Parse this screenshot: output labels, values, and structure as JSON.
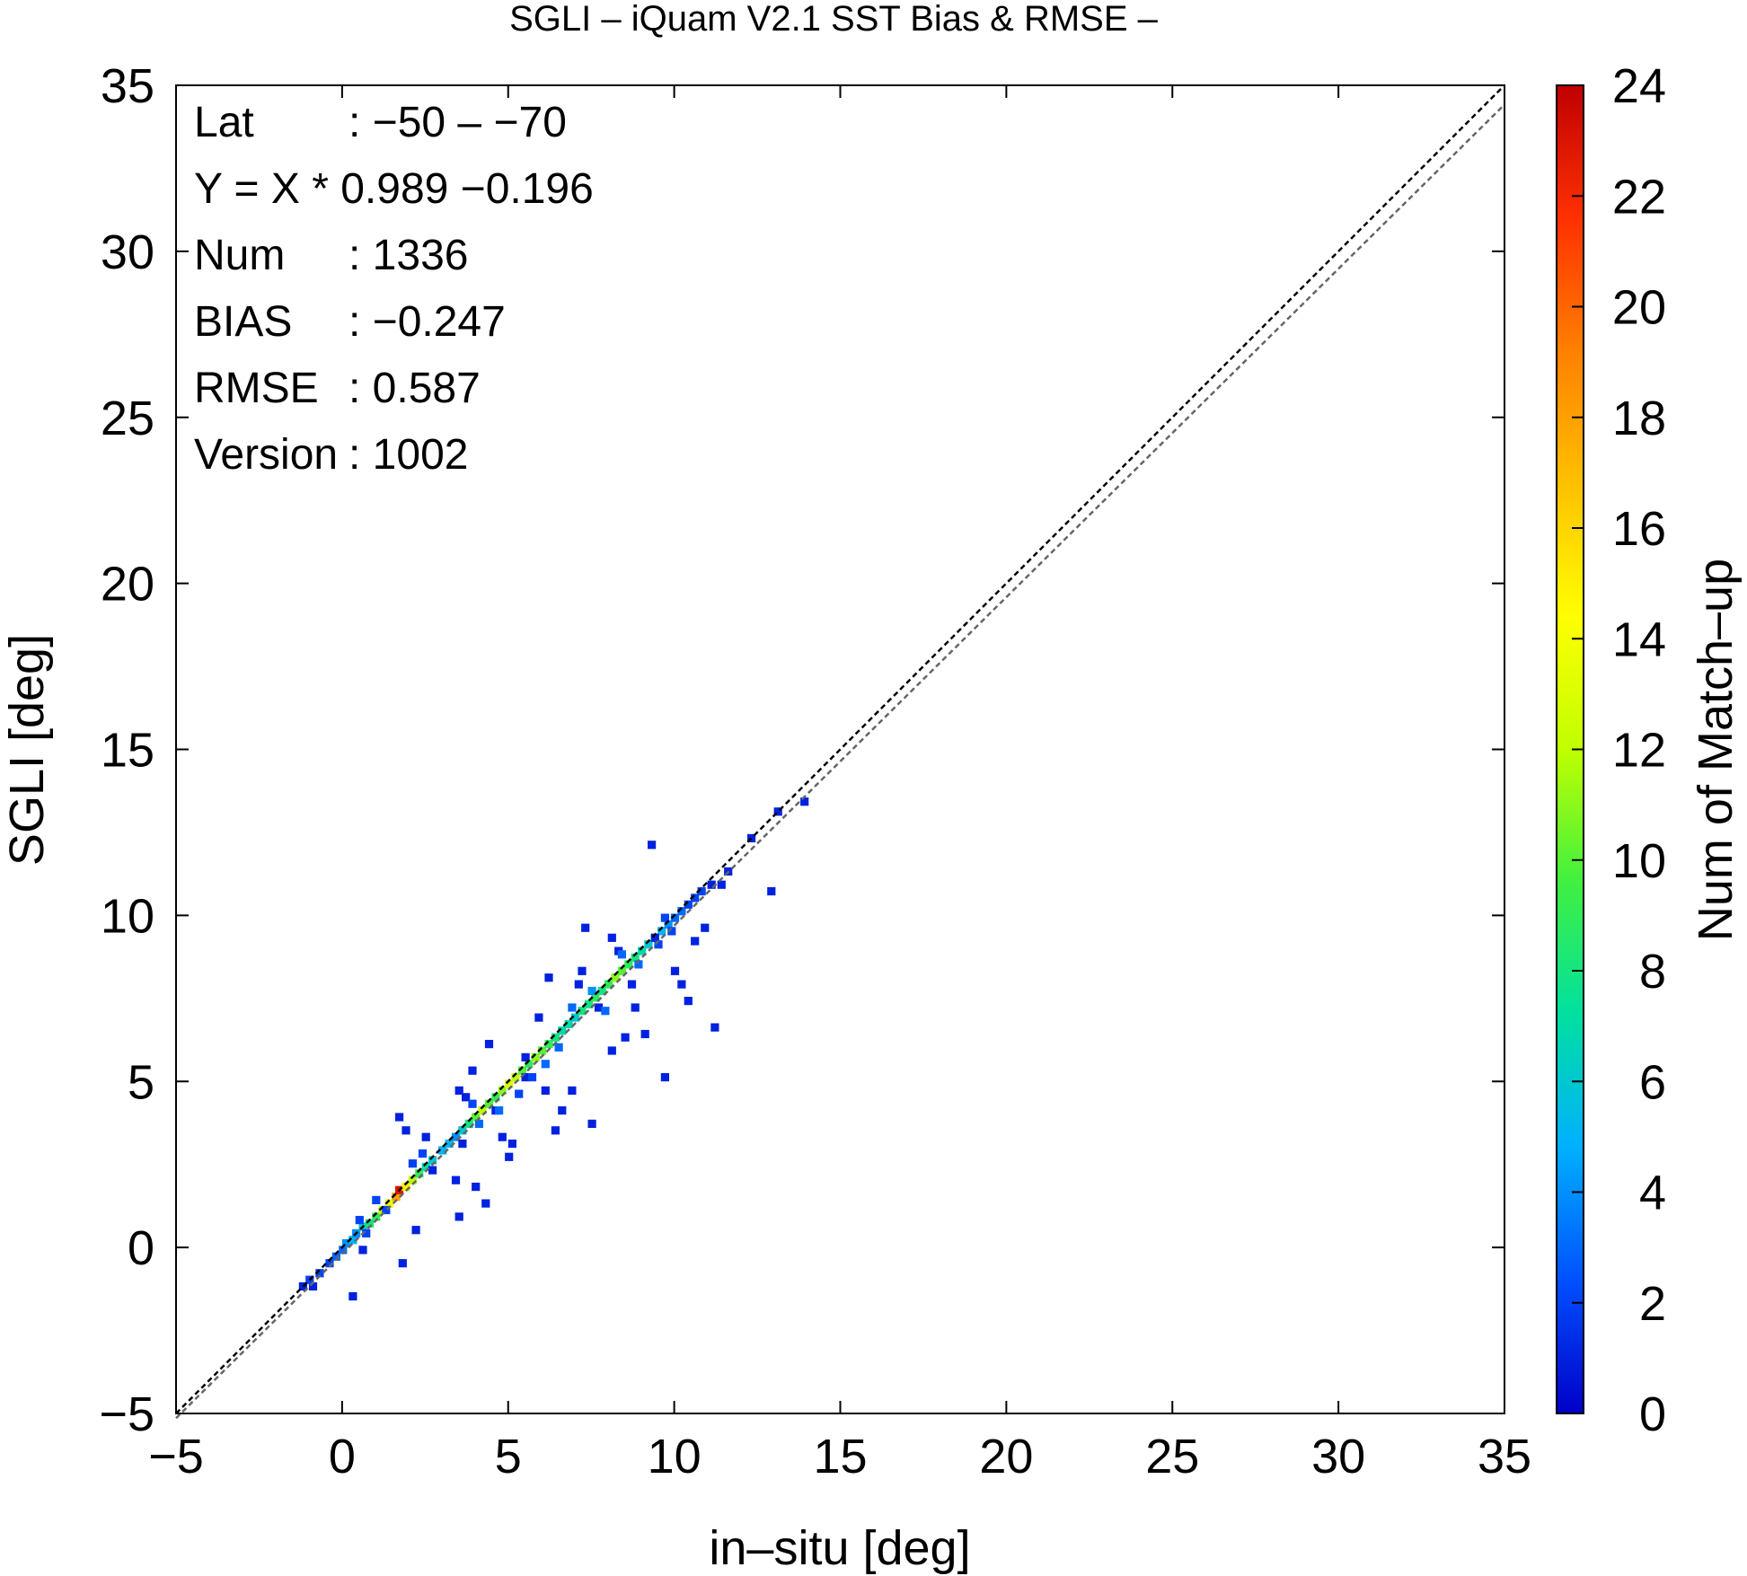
{
  "chart_data": {
    "type": "heatmap",
    "title": "SGLI – iQuam V2.1 SST Bias & RMSE  –",
    "xlabel": "in–situ [deg]",
    "ylabel": "SGLI [deg]",
    "xlim": [
      -5,
      35
    ],
    "ylim": [
      -5,
      35
    ],
    "x_ticks": [
      "−5",
      "0",
      "5",
      "10",
      "15",
      "20",
      "25",
      "30",
      "35"
    ],
    "y_ticks": [
      "−5",
      "0",
      "5",
      "10",
      "15",
      "20",
      "25",
      "30",
      "35"
    ],
    "colorbar": {
      "label": "Num of Match–up",
      "range": [
        0,
        24
      ],
      "ticks": [
        "0",
        "2",
        "4",
        "6",
        "8",
        "10",
        "12",
        "14",
        "16",
        "18",
        "20",
        "22",
        "24"
      ],
      "colormap": [
        "#0000c8",
        "#0050ff",
        "#00b0ff",
        "#00e0a0",
        "#40f040",
        "#c0ff00",
        "#ffff00",
        "#ffc000",
        "#ff8000",
        "#ff3000",
        "#c00000"
      ]
    },
    "reference_lines": [
      {
        "label": "1:1",
        "slope": 1,
        "intercept": 0,
        "color": "#000000",
        "style": "dashed"
      },
      {
        "label": "fit",
        "slope": 0.989,
        "intercept": -0.196,
        "color": "#666666",
        "style": "dashed"
      }
    ],
    "stats": [
      {
        "key": "Lat",
        "sep": ":",
        "value": "−50 – −70"
      },
      {
        "key": "Y = X * 0.989 −0.196",
        "sep": "",
        "value": ""
      },
      {
        "key": "Num",
        "sep": ":",
        "value": "1336"
      },
      {
        "key": "BIAS",
        "sep": ":",
        "value": "−0.247"
      },
      {
        "key": "RMSE",
        "sep": ":",
        "value": "0.587"
      },
      {
        "key": "Version",
        "sep": ":",
        "value": "1002"
      }
    ],
    "grid": false,
    "bin_size": 0.25,
    "bins": [
      [
        -1.3,
        -1.3,
        1
      ],
      [
        -1.0,
        -1.3,
        1
      ],
      [
        -1.1,
        -1.1,
        2
      ],
      [
        -0.8,
        -0.9,
        2
      ],
      [
        -0.5,
        -0.6,
        2
      ],
      [
        -0.3,
        -0.4,
        3
      ],
      [
        -0.1,
        -0.2,
        3
      ],
      [
        0.0,
        0.0,
        4
      ],
      [
        0.2,
        0.1,
        5
      ],
      [
        0.3,
        0.3,
        4
      ],
      [
        0.5,
        0.5,
        6
      ],
      [
        0.7,
        0.6,
        8
      ],
      [
        0.9,
        0.8,
        9
      ],
      [
        1.1,
        1.0,
        12
      ],
      [
        1.3,
        1.2,
        14
      ],
      [
        1.5,
        1.4,
        18
      ],
      [
        1.6,
        1.6,
        23
      ],
      [
        1.8,
        1.7,
        15
      ],
      [
        2.0,
        1.9,
        12
      ],
      [
        2.2,
        2.1,
        9
      ],
      [
        2.4,
        2.3,
        7
      ],
      [
        2.6,
        2.5,
        6
      ],
      [
        2.9,
        2.8,
        5
      ],
      [
        3.1,
        3.0,
        5
      ],
      [
        3.3,
        3.2,
        4
      ],
      [
        3.5,
        3.4,
        6
      ],
      [
        3.7,
        3.6,
        8
      ],
      [
        3.9,
        3.8,
        10
      ],
      [
        4.1,
        4.0,
        12
      ],
      [
        4.3,
        4.2,
        10
      ],
      [
        4.5,
        4.4,
        9
      ],
      [
        4.7,
        4.6,
        11
      ],
      [
        4.9,
        4.8,
        13
      ],
      [
        5.1,
        5.0,
        12
      ],
      [
        5.3,
        5.2,
        10
      ],
      [
        5.5,
        5.4,
        9
      ],
      [
        5.7,
        5.6,
        11
      ],
      [
        5.9,
        5.8,
        10
      ],
      [
        6.1,
        6.0,
        9
      ],
      [
        6.3,
        6.2,
        8
      ],
      [
        6.5,
        6.4,
        7
      ],
      [
        6.7,
        6.6,
        7
      ],
      [
        6.9,
        6.8,
        6
      ],
      [
        7.1,
        7.0,
        8
      ],
      [
        7.3,
        7.2,
        8
      ],
      [
        7.5,
        7.4,
        9
      ],
      [
        7.7,
        7.6,
        8
      ],
      [
        7.9,
        7.8,
        9
      ],
      [
        8.1,
        8.0,
        11
      ],
      [
        8.3,
        8.2,
        10
      ],
      [
        8.5,
        8.4,
        9
      ],
      [
        8.7,
        8.6,
        8
      ],
      [
        8.9,
        8.8,
        7
      ],
      [
        9.1,
        9.0,
        6
      ],
      [
        9.3,
        9.2,
        5
      ],
      [
        9.5,
        9.4,
        5
      ],
      [
        9.7,
        9.6,
        4
      ],
      [
        9.9,
        9.8,
        3
      ],
      [
        10.1,
        10.0,
        3
      ],
      [
        10.3,
        10.2,
        2
      ],
      [
        10.5,
        10.4,
        2
      ],
      [
        10.7,
        10.6,
        2
      ],
      [
        11.0,
        10.8,
        1
      ],
      [
        11.5,
        11.2,
        1
      ],
      [
        12.2,
        12.2,
        1
      ],
      [
        13.0,
        13.0,
        1
      ],
      [
        13.8,
        13.3,
        1
      ],
      [
        9.2,
        12.0,
        1
      ],
      [
        12.8,
        10.6,
        1
      ],
      [
        11.3,
        10.8,
        1
      ],
      [
        0.5,
        -0.2,
        1
      ],
      [
        0.2,
        -1.6,
        1
      ],
      [
        1.6,
        3.8,
        1
      ],
      [
        1.7,
        -0.6,
        1
      ],
      [
        2.1,
        0.4,
        1
      ],
      [
        2.6,
        2.2,
        1
      ],
      [
        3.4,
        0.8,
        1
      ],
      [
        3.5,
        3.0,
        1
      ],
      [
        3.3,
        1.9,
        1
      ],
      [
        3.9,
        1.7,
        1
      ],
      [
        4.2,
        1.2,
        1
      ],
      [
        4.5,
        4.0,
        1
      ],
      [
        4.3,
        6.0,
        1
      ],
      [
        5.0,
        3.0,
        1
      ],
      [
        4.7,
        3.2,
        1
      ],
      [
        5.4,
        5.0,
        1
      ],
      [
        5.8,
        6.8,
        1
      ],
      [
        6.0,
        4.6,
        1
      ],
      [
        6.3,
        3.4,
        1
      ],
      [
        6.5,
        4.0,
        1
      ],
      [
        6.8,
        4.6,
        1
      ],
      [
        7.0,
        7.8,
        1
      ],
      [
        7.4,
        3.6,
        1
      ],
      [
        7.1,
        8.2,
        1
      ],
      [
        7.6,
        7.1,
        1
      ],
      [
        8.0,
        5.8,
        1
      ],
      [
        8.4,
        6.2,
        1
      ],
      [
        8.6,
        7.8,
        1
      ],
      [
        8.2,
        8.8,
        1
      ],
      [
        8.7,
        7.1,
        1
      ],
      [
        9.0,
        6.3,
        1
      ],
      [
        9.6,
        5.0,
        1
      ],
      [
        9.3,
        9.2,
        1
      ],
      [
        9.9,
        8.2,
        1
      ],
      [
        10.5,
        9.1,
        1
      ],
      [
        11.1,
        6.5,
        1
      ],
      [
        10.3,
        7.3,
        1
      ],
      [
        10.1,
        7.8,
        1
      ],
      [
        10.8,
        9.5,
        1
      ],
      [
        8.0,
        9.2,
        1
      ],
      [
        7.2,
        9.5,
        1
      ],
      [
        6.1,
        8.0,
        1
      ],
      [
        5.4,
        5.6,
        1
      ],
      [
        4.9,
        2.6,
        1
      ],
      [
        3.8,
        5.2,
        1
      ],
      [
        3.6,
        4.4,
        1
      ],
      [
        3.4,
        4.6,
        1
      ],
      [
        2.4,
        3.2,
        1
      ],
      [
        1.8,
        3.4,
        1
      ],
      [
        2.0,
        2.4,
        2
      ],
      [
        2.3,
        2.7,
        2
      ],
      [
        1.2,
        1.0,
        2
      ],
      [
        0.9,
        1.3,
        2
      ],
      [
        0.6,
        0.3,
        2
      ],
      [
        0.4,
        0.7,
        2
      ],
      [
        5.2,
        4.5,
        2
      ],
      [
        5.6,
        5.0,
        2
      ],
      [
        6.4,
        5.9,
        3
      ],
      [
        6.8,
        7.1,
        3
      ],
      [
        7.8,
        7.0,
        3
      ],
      [
        8.3,
        8.7,
        3
      ],
      [
        9.4,
        9.0,
        2
      ],
      [
        9.6,
        9.8,
        2
      ],
      [
        4.6,
        4.0,
        3
      ],
      [
        4.0,
        3.6,
        3
      ],
      [
        3.8,
        4.2,
        2
      ],
      [
        6.0,
        5.4,
        3
      ],
      [
        7.4,
        7.6,
        4
      ],
      [
        8.8,
        8.4,
        3
      ],
      [
        9.8,
        9.4,
        2
      ]
    ]
  }
}
